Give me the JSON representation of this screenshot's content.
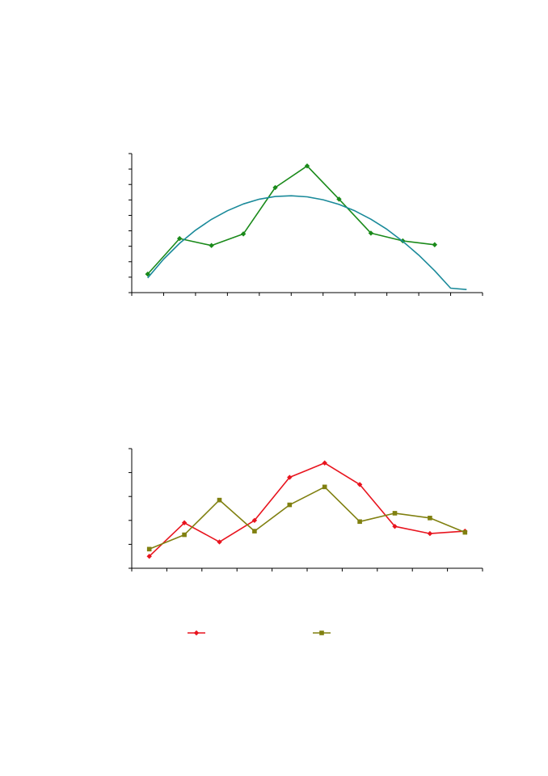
{
  "chart_data": [
    {
      "type": "line",
      "title": "",
      "xlabel": "",
      "ylabel": "",
      "x": [
        1,
        2,
        3,
        4,
        5,
        6,
        7,
        8,
        9,
        10
      ],
      "xlim": [
        0.5,
        11.5
      ],
      "ylim": [
        0,
        9
      ],
      "grid": false,
      "legend": "none",
      "series": [
        {
          "kind": "data",
          "color": "#1a8a1a",
          "marker": "diamond",
          "values": [
            1.2,
            3.5,
            3.05,
            3.8,
            6.8,
            8.2,
            6.05,
            3.85,
            3.35,
            3.1
          ]
        },
        {
          "kind": "trend",
          "color": "#1a8a9a",
          "marker": "none",
          "x": [
            1,
            1.5,
            2,
            2.5,
            3,
            3.5,
            4,
            4.5,
            5,
            5.5,
            6,
            6.5,
            7,
            7.5,
            8,
            8.5,
            9,
            9.5,
            10,
            10.5,
            11
          ],
          "values": [
            0.95,
            2.17,
            3.19,
            4.04,
            4.74,
            5.3,
            5.74,
            6.05,
            6.22,
            6.27,
            6.2,
            6.01,
            5.71,
            5.29,
            4.75,
            4.1,
            3.32,
            2.43,
            1.42,
            0.29,
            0.2
          ]
        }
      ]
    },
    {
      "type": "line",
      "title": "",
      "xlabel": "",
      "ylabel": "",
      "x": [
        1,
        2,
        3,
        4,
        5,
        6,
        7,
        8,
        9,
        10
      ],
      "xlim": [
        0.5,
        10.5
      ],
      "ylim": [
        0,
        5
      ],
      "grid": false,
      "legend": "bottom",
      "series": [
        {
          "color": "#e8141e",
          "marker": "diamond",
          "values": [
            0.5,
            1.9,
            1.1,
            2.0,
            3.8,
            4.4,
            3.5,
            1.75,
            1.45,
            1.55
          ]
        },
        {
          "color": "#808010",
          "marker": "square",
          "values": [
            0.8,
            1.4,
            2.85,
            1.55,
            2.65,
            3.4,
            1.95,
            2.3,
            2.1,
            1.5
          ]
        }
      ]
    }
  ]
}
